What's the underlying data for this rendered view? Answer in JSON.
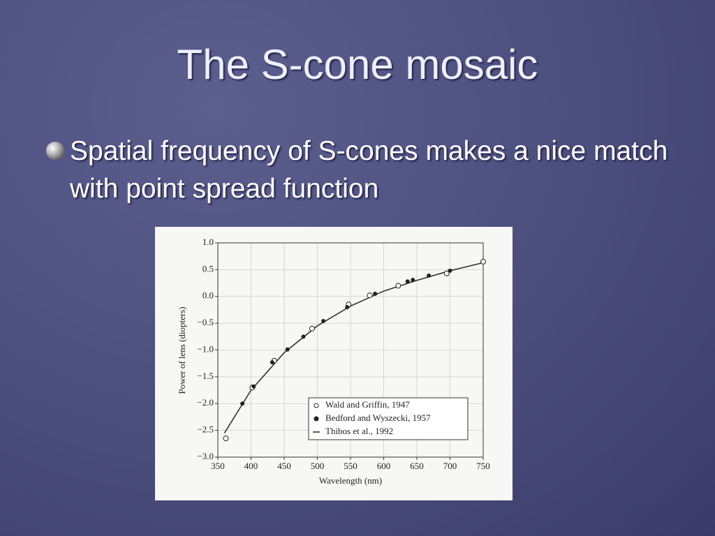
{
  "slide": {
    "title": "The S-cone mosaic",
    "bullets": [
      "Spatial frequency of S-cones makes a nice match with point spread function"
    ]
  },
  "chart_data": {
    "type": "scatter",
    "xlabel": "Wavelength (nm)",
    "ylabel": "Power of lens (diopters)",
    "xlim": [
      350,
      750
    ],
    "xticks": [
      350,
      400,
      450,
      500,
      550,
      600,
      650,
      700,
      750
    ],
    "ylim": [
      -3,
      1
    ],
    "yticks": [
      {
        "value": 1,
        "label": "1.0"
      },
      0.5,
      {
        "value": 0,
        "label": "0.0"
      },
      {
        "value": -0.5,
        "label": "−0.5"
      },
      {
        "value": -1,
        "label": "−1.0"
      },
      {
        "value": -1.5,
        "label": "−1.5"
      },
      {
        "value": -2,
        "label": "−2.0"
      },
      {
        "value": -2.5,
        "label": "−2.5"
      },
      {
        "value": -3,
        "label": "−3.0"
      }
    ],
    "grid": true,
    "legend": "lower right",
    "series": [
      {
        "name": "Wald and Griffin, 1947",
        "color": "#222222",
        "marker": "open-circle",
        "x": [
          362,
          402,
          435,
          492,
          547,
          579,
          622,
          695,
          750
        ],
        "values": [
          -2.65,
          -1.7,
          -1.2,
          -0.6,
          -0.15,
          0.02,
          0.2,
          0.43,
          0.65
        ]
      },
      {
        "name": "Bedford and Wyszecki, 1957",
        "color": "#222222",
        "marker": "filled-circle",
        "x": [
          387,
          404,
          432,
          455,
          479,
          509,
          545,
          587,
          636,
          644,
          668,
          700
        ],
        "values": [
          -2.0,
          -1.68,
          -1.23,
          -0.99,
          -0.75,
          -0.46,
          -0.2,
          0.05,
          0.28,
          0.31,
          0.39,
          0.48
        ]
      },
      {
        "name": "Thibos et al., 1992",
        "color": "#333333",
        "marker": "line",
        "x": [
          360,
          400,
          450,
          500,
          550,
          600,
          650,
          700,
          750
        ],
        "values": [
          -2.55,
          -1.75,
          -1.05,
          -0.55,
          -0.18,
          0.1,
          0.3,
          0.48,
          0.63
        ]
      }
    ]
  }
}
